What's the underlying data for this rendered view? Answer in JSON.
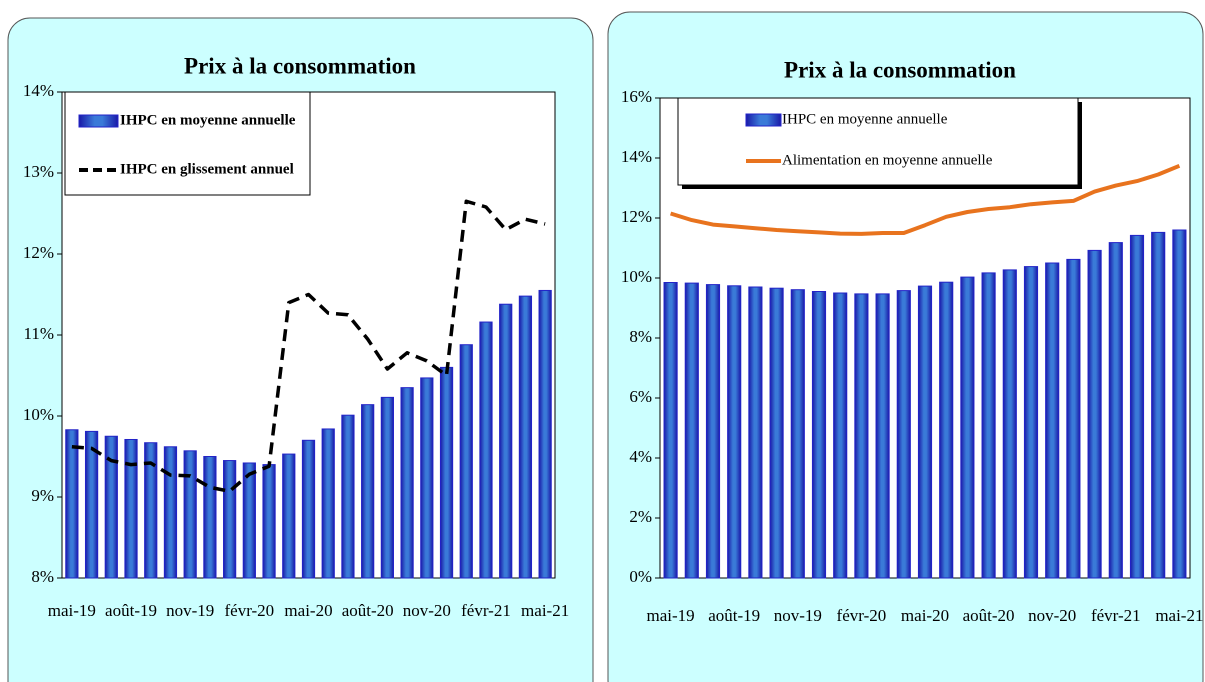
{
  "chart_data": [
    {
      "type": "combo",
      "title": "Prix à la consommation",
      "categories": [
        "mai-19",
        null,
        null,
        "août-19",
        null,
        null,
        "nov-19",
        null,
        null,
        "févr-20",
        null,
        null,
        "mai-20",
        null,
        null,
        "août-20",
        null,
        null,
        "nov-20",
        null,
        null,
        "févr-21",
        null,
        null,
        "mai-21"
      ],
      "series": [
        {
          "name": "IHPC en moyenne annuelle",
          "type": "bar",
          "color": "#2323c8",
          "values": [
            9.83,
            9.81,
            9.75,
            9.71,
            9.67,
            9.62,
            9.57,
            9.5,
            9.45,
            9.42,
            9.4,
            9.53,
            9.7,
            9.84,
            10.01,
            10.14,
            10.23,
            10.35,
            10.47,
            10.6,
            10.88,
            11.16,
            11.38,
            11.48,
            11.55
          ]
        },
        {
          "name": "IHPC en glissement annuel",
          "type": "line",
          "style": "dashed",
          "color": "#000000",
          "values": [
            9.62,
            9.6,
            9.45,
            9.4,
            9.42,
            9.27,
            9.26,
            9.12,
            9.07,
            9.28,
            9.38,
            11.4,
            11.5,
            11.27,
            11.25,
            10.95,
            10.58,
            10.78,
            10.68,
            10.5,
            12.65,
            12.58,
            12.3,
            12.43,
            12.37
          ]
        }
      ],
      "ylim": [
        8,
        14
      ],
      "yticks": [
        {
          "value": 8,
          "label": "8%"
        },
        {
          "value": 9,
          "label": "9%"
        },
        {
          "value": 10,
          "label": "10%"
        },
        {
          "value": 11,
          "label": "11%"
        },
        {
          "value": 12,
          "label": "12%"
        },
        {
          "value": 13,
          "label": "13%"
        },
        {
          "value": 14,
          "label": "14%"
        }
      ],
      "grid": false,
      "legend": "top-left"
    },
    {
      "type": "combo",
      "title": "Prix à la consommation",
      "categories": [
        "mai-19",
        null,
        null,
        "août-19",
        null,
        null,
        "nov-19",
        null,
        null,
        "févr-20",
        null,
        null,
        "mai-20",
        null,
        null,
        "août-20",
        null,
        null,
        "nov-20",
        null,
        null,
        "févr-21",
        null,
        null,
        "mai-21"
      ],
      "series": [
        {
          "name": "IHPC en moyenne annuelle",
          "type": "bar",
          "color": "#2323c8",
          "values": [
            9.85,
            9.83,
            9.78,
            9.74,
            9.7,
            9.66,
            9.61,
            9.55,
            9.5,
            9.47,
            9.47,
            9.58,
            9.73,
            9.86,
            10.03,
            10.17,
            10.27,
            10.38,
            10.5,
            10.62,
            10.92,
            11.18,
            11.42,
            11.52,
            11.6
          ]
        },
        {
          "name": "Alimentation en moyenne annuelle",
          "type": "line",
          "style": "solid",
          "color": "#e8731e",
          "values": [
            12.15,
            11.93,
            11.78,
            11.72,
            11.66,
            11.6,
            11.56,
            11.52,
            11.48,
            11.47,
            11.5,
            11.5,
            11.76,
            12.04,
            12.2,
            12.3,
            12.36,
            12.46,
            12.52,
            12.57,
            12.88,
            13.08,
            13.23,
            13.45,
            13.74
          ]
        }
      ],
      "ylim": [
        0,
        16
      ],
      "yticks": [
        {
          "value": 0,
          "label": "0%"
        },
        {
          "value": 2,
          "label": "2%"
        },
        {
          "value": 4,
          "label": "4%"
        },
        {
          "value": 6,
          "label": "6%"
        },
        {
          "value": 8,
          "label": "8%"
        },
        {
          "value": 10,
          "label": "10%"
        },
        {
          "value": 12,
          "label": "12%"
        },
        {
          "value": 14,
          "label": "14%"
        },
        {
          "value": 16,
          "label": "16%"
        }
      ],
      "grid": false,
      "legend": "top-left"
    }
  ]
}
